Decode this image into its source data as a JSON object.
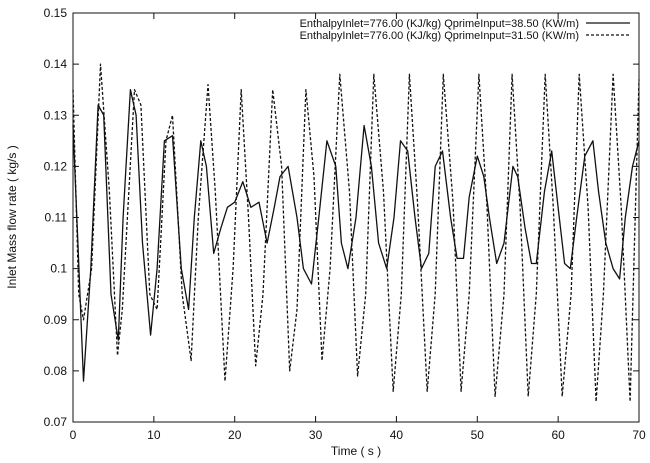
{
  "chart_data": {
    "type": "line",
    "xlabel": "Time ( s )",
    "ylabel": "Inlet Mass flow rate ( kg/s )",
    "xlim": [
      0,
      70
    ],
    "ylim": [
      0.07,
      0.15
    ],
    "xticks": [
      "0",
      "10",
      "20",
      "30",
      "40",
      "50",
      "60",
      "70"
    ],
    "yticks": [
      "0.07",
      "0.08",
      "0.09",
      "0.1",
      "0.11",
      "0.12",
      "0.13",
      "0.14",
      "0.15"
    ],
    "grid": false,
    "legend_position": "top-right",
    "series": [
      {
        "name": "EnthalpyInlet=776.00 (KJ/kg) QprimeInput=38.50 (KW/m)",
        "line_style": "solid",
        "color": "#111111",
        "x": [
          0,
          0.6,
          1.3,
          2.2,
          3.1,
          3.8,
          4.7,
          5.6,
          6.2,
          7.1,
          7.8,
          8.6,
          9.6,
          10.4,
          11.3,
          12.3,
          13.4,
          14.3,
          15.0,
          15.8,
          16.5,
          17.4,
          18.3,
          19.1,
          20.0,
          21.0,
          22.0,
          23.0,
          24.0,
          24.9,
          25.6,
          26.6,
          27.7,
          28.5,
          29.5,
          30.4,
          31.4,
          32.5,
          33.2,
          34.0,
          35.0,
          36.0,
          36.9,
          37.8,
          38.8,
          39.7,
          40.5,
          41.4,
          42.3,
          43.1,
          44.0,
          44.8,
          45.7,
          46.7,
          47.5,
          48.3,
          49.0,
          50.0,
          50.8,
          51.5,
          52.4,
          53.3,
          54.4,
          55.0,
          55.9,
          56.7,
          57.3,
          58.3,
          59.2,
          60.0,
          60.8,
          61.5,
          62.3,
          63.3,
          64.3,
          65.0,
          65.9,
          66.8,
          67.6,
          68.3,
          69.2,
          70.0
        ],
        "values": [
          0.128,
          0.105,
          0.078,
          0.1,
          0.132,
          0.13,
          0.095,
          0.086,
          0.11,
          0.135,
          0.13,
          0.105,
          0.087,
          0.1,
          0.125,
          0.126,
          0.1,
          0.092,
          0.11,
          0.125,
          0.12,
          0.103,
          0.108,
          0.112,
          0.113,
          0.117,
          0.112,
          0.113,
          0.105,
          0.112,
          0.118,
          0.12,
          0.11,
          0.1,
          0.097,
          0.11,
          0.125,
          0.12,
          0.105,
          0.1,
          0.11,
          0.128,
          0.12,
          0.105,
          0.1,
          0.11,
          0.125,
          0.123,
          0.11,
          0.1,
          0.103,
          0.12,
          0.123,
          0.11,
          0.102,
          0.102,
          0.114,
          0.122,
          0.118,
          0.11,
          0.101,
          0.105,
          0.12,
          0.118,
          0.108,
          0.101,
          0.101,
          0.115,
          0.123,
          0.112,
          0.101,
          0.1,
          0.11,
          0.122,
          0.125,
          0.115,
          0.105,
          0.1,
          0.098,
          0.11,
          0.12,
          0.125
        ]
      },
      {
        "name": "EnthalpyInlet=776.00 (KJ/kg) QprimeInput=31.50 (KW/m)",
        "line_style": "dashed",
        "color": "#111111",
        "x": [
          0,
          0.7,
          1.3,
          2.3,
          3.4,
          4.5,
          5.5,
          6.1,
          7.6,
          8.4,
          9.5,
          10.4,
          11.5,
          12.3,
          13.5,
          14.6,
          15.5,
          16.7,
          17.6,
          18.8,
          19.8,
          20.8,
          21.7,
          22.6,
          23.5,
          24.7,
          25.8,
          26.8,
          27.7,
          28.8,
          29.8,
          30.8,
          31.8,
          33.0,
          34.2,
          35.2,
          36.2,
          37.2,
          38.4,
          39.6,
          40.6,
          41.6,
          42.6,
          43.8,
          44.8,
          45.8,
          47.0,
          48.0,
          49.0,
          50.2,
          51.2,
          52.2,
          53.3,
          54.3,
          55.3,
          56.3,
          57.3,
          58.4,
          59.4,
          60.5,
          61.6,
          62.6,
          63.7,
          64.7,
          65.6,
          66.8,
          67.8,
          68.9,
          70.0
        ],
        "values": [
          0.135,
          0.095,
          0.09,
          0.1,
          0.14,
          0.115,
          0.083,
          0.092,
          0.135,
          0.132,
          0.095,
          0.092,
          0.125,
          0.13,
          0.095,
          0.082,
          0.11,
          0.136,
          0.115,
          0.078,
          0.1,
          0.135,
          0.11,
          0.081,
          0.095,
          0.135,
          0.12,
          0.08,
          0.092,
          0.135,
          0.118,
          0.082,
          0.1,
          0.138,
          0.115,
          0.079,
          0.095,
          0.138,
          0.115,
          0.076,
          0.095,
          0.138,
          0.113,
          0.076,
          0.095,
          0.138,
          0.113,
          0.076,
          0.095,
          0.138,
          0.112,
          0.075,
          0.095,
          0.138,
          0.112,
          0.075,
          0.095,
          0.138,
          0.112,
          0.075,
          0.095,
          0.138,
          0.112,
          0.074,
          0.095,
          0.138,
          0.112,
          0.074,
          0.137
        ]
      }
    ]
  }
}
